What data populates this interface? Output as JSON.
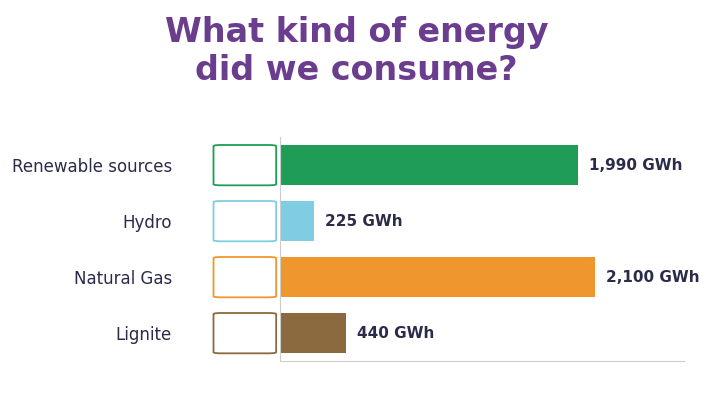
{
  "chart_data": {
    "type": "bar",
    "orientation": "horizontal",
    "title": "What kind of energy\ndid we consume?",
    "categories": [
      "Renewable sources",
      "Hydro",
      "Natural Gas",
      "Lignite"
    ],
    "values": [
      1990,
      225,
      2100,
      440
    ],
    "value_labels": [
      "1,990 GWh",
      "225 GWh",
      "2,100 GWh",
      "440 GWh"
    ],
    "colors": [
      "#1f9d57",
      "#7fcde2",
      "#f0962f",
      "#8a6a3e"
    ],
    "xlim": [
      0,
      2700
    ],
    "xticks": [],
    "grid": false,
    "data_labels": true,
    "tick_labels": "y"
  }
}
